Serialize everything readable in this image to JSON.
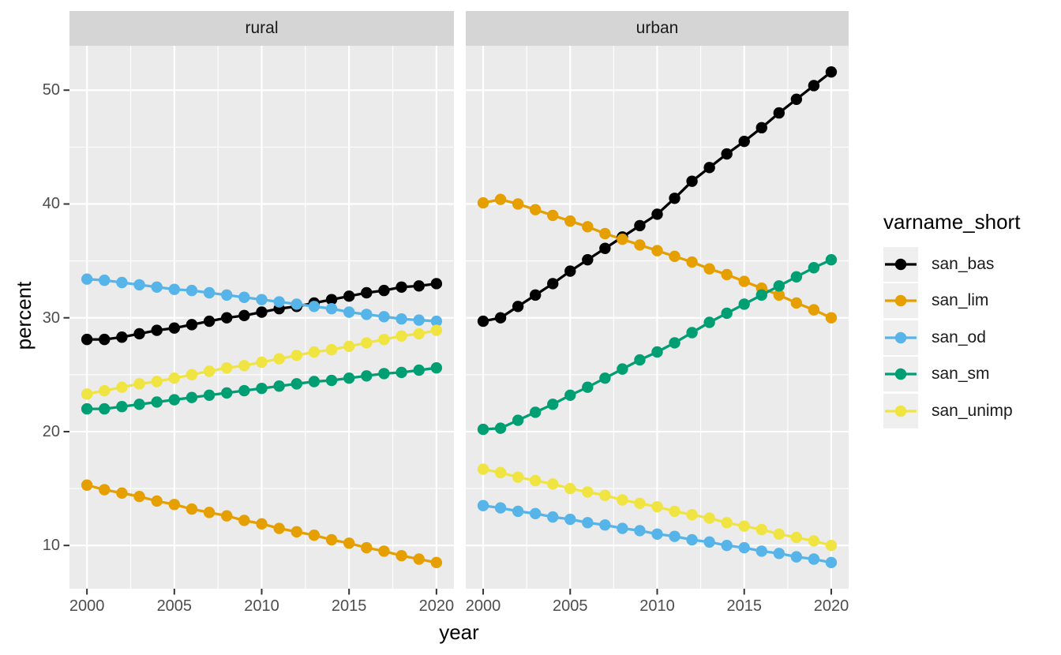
{
  "chart_data": {
    "type": "line",
    "title": "",
    "xlabel": "year",
    "ylabel": "percent",
    "legend_title": "varname_short",
    "legend_position": "right",
    "grid": true,
    "x": [
      2000,
      2001,
      2002,
      2003,
      2004,
      2005,
      2006,
      2007,
      2008,
      2009,
      2010,
      2011,
      2012,
      2013,
      2014,
      2015,
      2016,
      2017,
      2018,
      2019,
      2020
    ],
    "x_ticks": [
      2000,
      2005,
      2010,
      2015,
      2020
    ],
    "x_minor_ticks": [
      2002.5,
      2007.5,
      2012.5,
      2017.5
    ],
    "y_ticks": [
      10,
      20,
      30,
      40,
      50
    ],
    "y_minor_ticks": [
      15,
      25,
      35,
      45
    ],
    "xlim": [
      1999,
      2021
    ],
    "ylim": [
      6.2,
      53.9
    ],
    "palette": {
      "san_bas": "#000000",
      "san_lim": "#E69F00",
      "san_od": "#56B4E9",
      "san_sm": "#009E73",
      "san_unimp": "#F0E442"
    },
    "legend_items": [
      "san_bas",
      "san_lim",
      "san_od",
      "san_sm",
      "san_unimp"
    ],
    "facets": [
      {
        "label": "rural",
        "series": [
          {
            "name": "san_bas",
            "values": [
              28.1,
              28.1,
              28.3,
              28.6,
              28.9,
              29.1,
              29.4,
              29.7,
              30.0,
              30.2,
              30.5,
              30.8,
              31.0,
              31.3,
              31.6,
              31.9,
              32.2,
              32.4,
              32.7,
              32.8,
              33.0
            ]
          },
          {
            "name": "san_lim",
            "values": [
              15.3,
              14.9,
              14.6,
              14.3,
              13.9,
              13.6,
              13.2,
              12.9,
              12.6,
              12.2,
              11.9,
              11.5,
              11.2,
              10.9,
              10.5,
              10.2,
              9.8,
              9.5,
              9.1,
              8.8,
              8.5
            ]
          },
          {
            "name": "san_od",
            "values": [
              33.4,
              33.3,
              33.1,
              32.9,
              32.7,
              32.5,
              32.4,
              32.2,
              32.0,
              31.8,
              31.6,
              31.4,
              31.2,
              31.0,
              30.8,
              30.5,
              30.3,
              30.1,
              29.9,
              29.8,
              29.7
            ]
          },
          {
            "name": "san_sm",
            "values": [
              22.0,
              22.0,
              22.2,
              22.4,
              22.6,
              22.8,
              23.0,
              23.2,
              23.4,
              23.6,
              23.8,
              24.0,
              24.2,
              24.4,
              24.5,
              24.7,
              24.9,
              25.1,
              25.2,
              25.4,
              25.6
            ]
          },
          {
            "name": "san_unimp",
            "values": [
              23.3,
              23.6,
              23.9,
              24.2,
              24.4,
              24.7,
              25.0,
              25.3,
              25.6,
              25.8,
              26.1,
              26.4,
              26.7,
              27.0,
              27.2,
              27.5,
              27.8,
              28.1,
              28.4,
              28.6,
              28.9
            ]
          }
        ]
      },
      {
        "label": "urban",
        "series": [
          {
            "name": "san_bas",
            "values": [
              29.7,
              30.0,
              31.0,
              32.0,
              33.0,
              34.1,
              35.1,
              36.1,
              37.1,
              38.1,
              39.1,
              40.5,
              42.0,
              43.2,
              44.4,
              45.5,
              46.7,
              48.0,
              49.2,
              50.4,
              51.6
            ]
          },
          {
            "name": "san_lim",
            "values": [
              40.1,
              40.4,
              40.0,
              39.5,
              39.0,
              38.5,
              38.0,
              37.4,
              36.9,
              36.4,
              35.9,
              35.4,
              34.9,
              34.3,
              33.8,
              33.2,
              32.6,
              32.0,
              31.3,
              30.7,
              30.0
            ]
          },
          {
            "name": "san_od",
            "values": [
              13.5,
              13.3,
              13.0,
              12.8,
              12.5,
              12.3,
              12.0,
              11.8,
              11.5,
              11.3,
              11.0,
              10.8,
              10.5,
              10.3,
              10.0,
              9.8,
              9.5,
              9.3,
              9.0,
              8.8,
              8.5
            ]
          },
          {
            "name": "san_sm",
            "values": [
              20.2,
              20.3,
              21.0,
              21.7,
              22.4,
              23.2,
              23.9,
              24.7,
              25.5,
              26.3,
              27.0,
              27.8,
              28.7,
              29.6,
              30.4,
              31.2,
              32.0,
              32.8,
              33.6,
              34.4,
              35.1
            ]
          },
          {
            "name": "san_unimp",
            "values": [
              16.7,
              16.4,
              16.0,
              15.7,
              15.4,
              15.0,
              14.7,
              14.4,
              14.0,
              13.7,
              13.4,
              13.0,
              12.7,
              12.4,
              12.0,
              11.7,
              11.4,
              11.0,
              10.7,
              10.4,
              10.0
            ]
          }
        ]
      }
    ]
  },
  "colors": {
    "panel_bg": "#EBEBEB",
    "strip_bg": "#D5D5D5",
    "grid_line": "#FFFFFF",
    "tick_mark": "#333333",
    "tick_text": "#4D4D4D",
    "axis_title_text": "#000000",
    "strip_text": "#1A1A1A",
    "legend_key_bg": "#EFEFEF"
  }
}
